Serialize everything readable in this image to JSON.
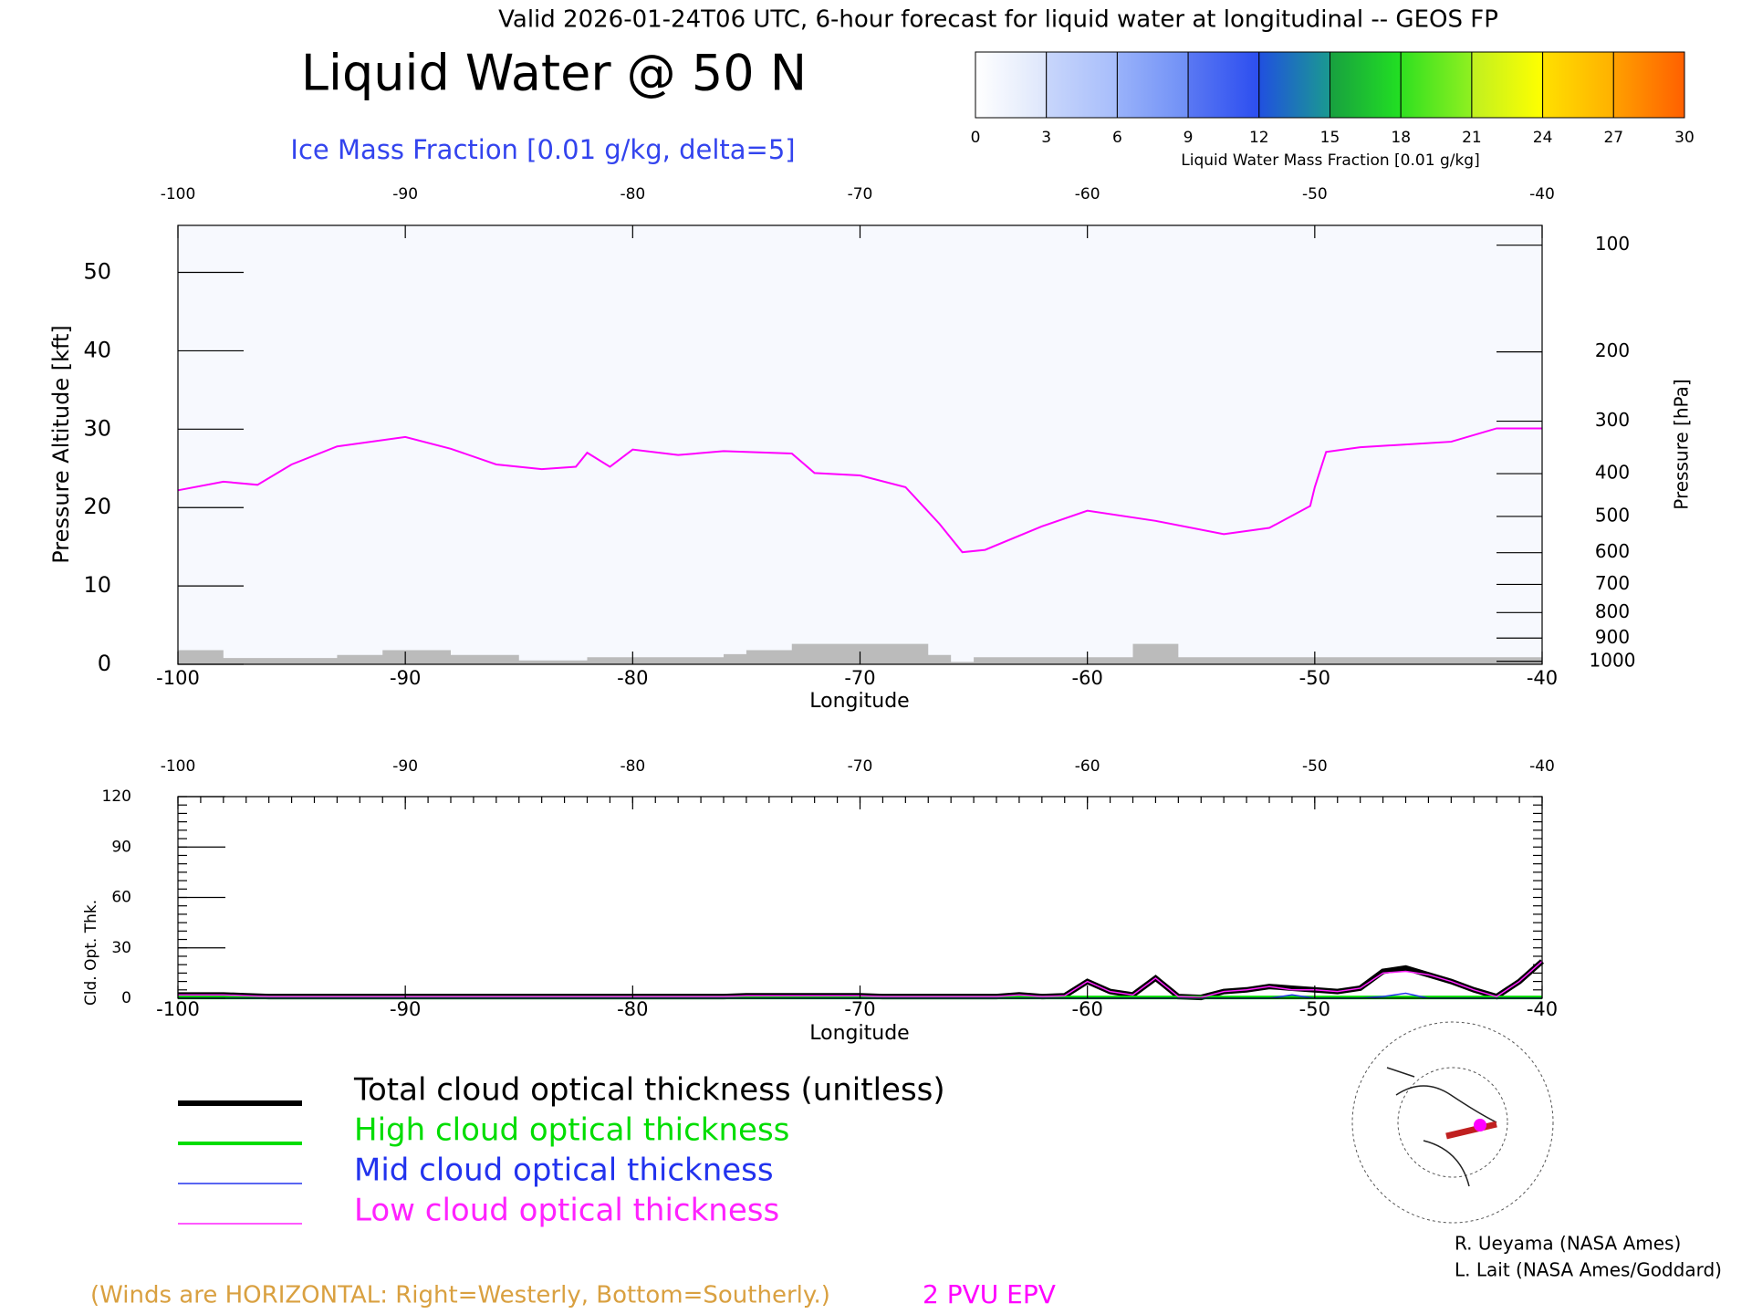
{
  "chart_data": [
    {
      "type": "cross-section",
      "header": "Valid 2026-01-24T06 UTC, 6-hour forecast for liquid water at longitudinal -- GEOS FP",
      "title": "Liquid Water @ 50 N",
      "subtitle": "Ice Mass Fraction [0.01 g/kg, delta=5]",
      "xlabel": "Longitude",
      "ylabel": "Pressure Altitude [kft]",
      "y2label": "Pressure [hPa]",
      "xlim": [
        -100,
        -40
      ],
      "xticks": [
        -100,
        -90,
        -80,
        -70,
        -60,
        -50,
        -40
      ],
      "ylim": [
        0,
        56
      ],
      "yticks": [
        0,
        10,
        20,
        30,
        40,
        50
      ],
      "y2scale": "pressure-altitude",
      "y2lim": [
        1013.25,
        87
      ],
      "y2ticks": [
        100,
        200,
        300,
        400,
        500,
        600,
        700,
        800,
        900,
        1000
      ],
      "terrain_color": "#bbbbbb",
      "terrain": {
        "x": [
          -100,
          -99,
          -98,
          -97,
          -96,
          -95,
          -94,
          -93,
          -92,
          -91,
          -90,
          -89,
          -88,
          -87,
          -86,
          -85,
          -84,
          -83,
          -82,
          -81,
          -80,
          -79,
          -78,
          -77,
          -76,
          -75,
          -74,
          -73,
          -72,
          -71,
          -70,
          -69,
          -68,
          -67,
          -66,
          -65,
          -64,
          -63,
          -62,
          -61,
          -60,
          -59,
          -58,
          -57,
          -56,
          -55,
          -54,
          -53,
          -52,
          -51,
          -50,
          -49,
          -48,
          -47,
          -46,
          -45,
          -44,
          -43,
          -42,
          -41,
          -40
        ],
        "values": [
          1.8,
          1.8,
          0.8,
          0.8,
          0.8,
          0.8,
          0.8,
          1.2,
          1.2,
          1.8,
          1.8,
          1.8,
          1.2,
          1.2,
          1.2,
          0.5,
          0.5,
          0.5,
          0.9,
          0.9,
          0.9,
          0.9,
          0.9,
          0.9,
          1.3,
          1.8,
          1.8,
          2.6,
          2.6,
          2.6,
          2.6,
          2.6,
          2.6,
          1.2,
          0.3,
          0.9,
          0.9,
          0.9,
          0.9,
          0.9,
          0.9,
          0.9,
          2.6,
          2.6,
          0.9,
          0.9,
          0.9,
          0.9,
          0.9,
          0.9,
          0.9,
          0.9,
          0.9,
          0.9,
          0.9,
          0.9,
          0.9,
          0.9,
          0.9,
          0.9,
          0.9
        ]
      },
      "series": [
        {
          "name": "2 PVU EPV",
          "color": "#ff00ff",
          "x": [
            -100,
            -98,
            -96.5,
            -95,
            -93,
            -90,
            -88,
            -86,
            -84,
            -82.5,
            -82,
            -81,
            -80,
            -78,
            -76,
            -73,
            -72,
            -70,
            -68,
            -66.5,
            -65.5,
            -64.5,
            -62,
            -60,
            -57,
            -54,
            -52,
            -50.2,
            -50,
            -49.5,
            -48,
            -44,
            -42,
            -40
          ],
          "values": [
            22.2,
            23.3,
            22.9,
            25.5,
            27.8,
            29.0,
            27.5,
            25.5,
            24.9,
            25.2,
            27.0,
            25.2,
            27.4,
            26.7,
            27.2,
            26.9,
            24.4,
            24.1,
            22.6,
            17.9,
            14.3,
            14.6,
            17.6,
            19.6,
            18.3,
            16.6,
            17.4,
            20.2,
            22.6,
            27.1,
            27.7,
            28.4,
            30.1,
            30.1
          ]
        }
      ],
      "footnote": "(Winds are HORIZONTAL: Right=Westerly, Bottom=Southerly.)",
      "credits": [
        "R. Ueyama (NASA Ames)",
        "L. Lait (NASA Ames/Goddard)"
      ]
    },
    {
      "type": "colorbar",
      "title": "Liquid Water Mass Fraction [0.01 g/kg]",
      "ticks": [
        0,
        3,
        6,
        9,
        12,
        15,
        18,
        21,
        24,
        27,
        30
      ],
      "colors": [
        [
          "#ffffff",
          "#dde6fb"
        ],
        [
          "#c8d6fb",
          "#a7bdfb"
        ],
        [
          "#99b2fa",
          "#6f8ff6"
        ],
        [
          "#5a78f3",
          "#2c4ef0"
        ],
        [
          "#2050e0",
          "#1a9a90"
        ],
        [
          "#18a040",
          "#22e022"
        ],
        [
          "#30e020",
          "#90f020"
        ],
        [
          "#c0f020",
          "#ffff00"
        ],
        [
          "#ffe000",
          "#ffb000"
        ],
        [
          "#ffa000",
          "#ff6000"
        ]
      ]
    },
    {
      "type": "line",
      "xlabel": "Longitude",
      "ylabel": "Cld. Opt. Thk.",
      "xlim": [
        -100,
        -40
      ],
      "xticks": [
        -100,
        -90,
        -80,
        -70,
        -60,
        -50,
        -40
      ],
      "ylim": [
        0,
        120
      ],
      "yticks": [
        0,
        30,
        60,
        90,
        120
      ],
      "x": [
        -100,
        -99,
        -98,
        -97,
        -96,
        -95,
        -94,
        -93,
        -92,
        -91,
        -90,
        -89,
        -88,
        -87,
        -86,
        -85,
        -84,
        -83,
        -82,
        -81,
        -80,
        -79,
        -78,
        -77,
        -76,
        -75,
        -74,
        -73,
        -72,
        -71,
        -70,
        -69,
        -68,
        -67,
        -66,
        -65,
        -64,
        -63,
        -62,
        -61,
        -60,
        -59,
        -58,
        -57,
        -56,
        -55,
        -54,
        -53,
        -52,
        -51,
        -50,
        -49,
        -48,
        -47,
        -46,
        -45,
        -44,
        -43,
        -42,
        -41,
        -40
      ],
      "series": [
        {
          "name": "Total cloud optical thickness (unitless)",
          "color": "#000000",
          "width": 6,
          "values": [
            2,
            2,
            2,
            1.5,
            1,
            1,
            1,
            1,
            1,
            1,
            1,
            1,
            1,
            1,
            1,
            1,
            1,
            1,
            1,
            1,
            1,
            1,
            1,
            1,
            1,
            1.5,
            1.5,
            1.5,
            1.5,
            1.5,
            1.5,
            1,
            1,
            1,
            1,
            1,
            1,
            2,
            1,
            1.5,
            10,
            4,
            2,
            12,
            1,
            0.5,
            4,
            5,
            7,
            6,
            5,
            4,
            6,
            16,
            18,
            14,
            10,
            5,
            1,
            10,
            22
          ]
        },
        {
          "name": "High cloud optical thickness",
          "color": "#00dd00",
          "width": 4,
          "values": [
            0.5,
            0.5,
            0.5,
            0.5,
            0.5,
            0.5,
            0.5,
            0.5,
            0.5,
            0.5,
            0.5,
            0.5,
            0.5,
            0.5,
            0.5,
            0.5,
            0.5,
            0.5,
            0.5,
            0.5,
            0.5,
            0.5,
            0.5,
            0.5,
            0.5,
            0.5,
            0.5,
            0.5,
            0.5,
            0.5,
            0.5,
            0.5,
            0.5,
            0.5,
            0.5,
            0.5,
            0.5,
            0.5,
            0.5,
            0.5,
            0.5,
            0.5,
            0.5,
            0.5,
            0.5,
            0.5,
            0.5,
            0.5,
            0.5,
            0.5,
            0.5,
            0.5,
            0.5,
            0.5,
            0.5,
            0.5,
            0.5,
            0.5,
            0.5,
            0.5,
            0.5
          ]
        },
        {
          "name": "Mid cloud optical thickness",
          "color": "#2233ee",
          "width": 1.5,
          "values": [
            0,
            0,
            0,
            0,
            0,
            0,
            0,
            0,
            0,
            0,
            0,
            0,
            0,
            0,
            0,
            0,
            0,
            0,
            0,
            0,
            0,
            0,
            0,
            0,
            0,
            0,
            0,
            0,
            0,
            0,
            0,
            0,
            0,
            0,
            0,
            0,
            0,
            0,
            0,
            0,
            0,
            0,
            0,
            0,
            0,
            0,
            0,
            0,
            0,
            2,
            0,
            0,
            0,
            1,
            3,
            0,
            0,
            0,
            0,
            0,
            0
          ]
        },
        {
          "name": "Low cloud optical thickness",
          "color": "#ff22ff",
          "width": 1.5,
          "values": [
            2,
            2,
            2,
            1.5,
            1,
            1,
            1,
            1,
            1,
            1,
            1,
            1,
            1,
            1,
            1,
            1,
            1,
            1,
            1,
            1,
            1,
            1,
            1,
            1,
            1,
            1.5,
            1.5,
            1.5,
            1.5,
            1.5,
            1.5,
            1,
            1,
            1,
            1,
            1,
            1,
            2,
            1,
            1.5,
            10,
            4,
            2,
            12,
            1,
            0.5,
            4,
            5,
            7,
            5,
            5,
            4,
            6,
            15,
            16,
            14,
            10,
            5,
            1,
            10,
            22
          ]
        }
      ]
    }
  ]
}
